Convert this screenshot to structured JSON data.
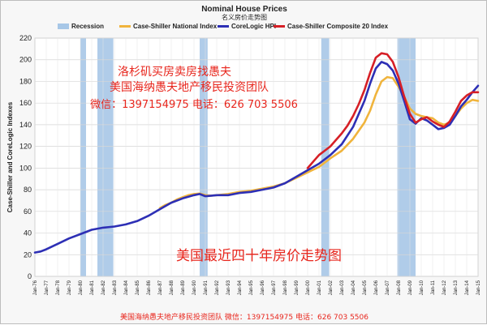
{
  "chart_data": {
    "type": "line",
    "title": "Nominal House Prices",
    "subtitle": "名义房价走势图",
    "ylabel": "Case-Shiller and CoreLogic Indexes",
    "xlabel": "",
    "ylim": [
      0,
      220
    ],
    "yticks": [
      0,
      20,
      40,
      60,
      80,
      100,
      120,
      140,
      160,
      180,
      200,
      220
    ],
    "xlim": [
      1976.0,
      2015.0
    ],
    "xtick_labels": [
      "Jan-76",
      "Jan-77",
      "Jan-78",
      "Jan-79",
      "Jan-80",
      "Jan-81",
      "Jan-82",
      "Jan-83",
      "Jan-84",
      "Jan-85",
      "Jan-86",
      "Jan-87",
      "Jan-88",
      "Jan-89",
      "Jan-90",
      "Jan-91",
      "Jan-92",
      "Jan-93",
      "Jan-94",
      "Jan-95",
      "Jan-96",
      "Jan-97",
      "Jan-98",
      "Jan-99",
      "Jan-00",
      "Jan-01",
      "Jan-02",
      "Jan-03",
      "Jan-04",
      "Jan-05",
      "Jan-06",
      "Jan-07",
      "Jan-08",
      "Jan-09",
      "Jan-10",
      "Jan-11",
      "Jan-12",
      "Jan-13",
      "Jan-14",
      "Jan-15"
    ],
    "grid": true,
    "legend_position": "top",
    "legend": [
      {
        "name": "Recession",
        "color": "#a7c7e7",
        "kind": "box"
      },
      {
        "name": "Case-Shiller National Index",
        "color": "#f0b43c",
        "kind": "line"
      },
      {
        "name": "CoreLogic HPI",
        "color": "#2d2fb5",
        "kind": "line"
      },
      {
        "name": "Case-Shiller Composite 20 Index",
        "color": "#d61f26",
        "kind": "line"
      }
    ],
    "recessions": [
      [
        1980.0,
        1980.5
      ],
      [
        1981.5,
        1982.9
      ],
      [
        1990.5,
        1991.2
      ],
      [
        2001.2,
        2001.9
      ],
      [
        2007.9,
        2009.5
      ]
    ],
    "series": [
      {
        "name": "Case-Shiller National Index",
        "color": "#f0b43c",
        "x": [
          1987.0,
          1987.5,
          1988.0,
          1988.5,
          1989.0,
          1989.5,
          1990.0,
          1990.5,
          1991.0,
          1991.5,
          1992.0,
          1993.0,
          1994.0,
          1995.0,
          1996.0,
          1997.0,
          1998.0,
          1999.0,
          2000.0,
          2001.0,
          2002.0,
          2003.0,
          2004.0,
          2005.0,
          2005.5,
          2006.0,
          2006.5,
          2007.0,
          2007.5,
          2008.0,
          2008.5,
          2009.0,
          2009.5,
          2010.0,
          2010.5,
          2011.0,
          2011.5,
          2012.0,
          2012.5,
          2013.0,
          2013.5,
          2014.0,
          2014.5,
          2015.0
        ],
        "y": [
          63,
          66,
          68,
          71,
          73,
          75,
          76,
          76.5,
          75,
          74.5,
          75,
          76,
          78,
          79,
          81,
          83,
          86,
          91,
          96,
          101,
          109,
          116,
          127,
          142,
          153,
          168,
          180,
          184,
          183,
          175,
          166,
          155,
          150,
          148,
          147,
          146,
          142,
          140,
          142,
          148,
          155,
          160,
          163,
          162
        ]
      },
      {
        "name": "CoreLogic HPI",
        "color": "#2d2fb5",
        "x": [
          1976.0,
          1976.5,
          1977.0,
          1978.0,
          1979.0,
          1980.0,
          1981.0,
          1982.0,
          1983.0,
          1984.0,
          1985.0,
          1986.0,
          1987.0,
          1988.0,
          1989.0,
          1990.0,
          1990.5,
          1991.0,
          1992.0,
          1993.0,
          1994.0,
          1995.0,
          1996.0,
          1997.0,
          1998.0,
          1999.0,
          2000.0,
          2001.0,
          2002.0,
          2003.0,
          2004.0,
          2005.0,
          2005.5,
          2006.0,
          2006.5,
          2007.0,
          2007.5,
          2008.0,
          2008.5,
          2009.0,
          2009.5,
          2010.0,
          2010.5,
          2011.0,
          2011.5,
          2012.0,
          2012.5,
          2013.0,
          2013.5,
          2014.0,
          2014.5,
          2015.0
        ],
        "y": [
          22,
          23,
          25,
          30,
          35,
          39,
          43,
          45,
          46,
          48,
          51,
          56,
          62,
          68,
          72,
          75,
          76,
          74,
          75,
          75,
          77,
          78,
          80,
          82,
          86,
          92,
          98,
          104,
          112,
          122,
          138,
          162,
          178,
          192,
          198,
          196,
          190,
          178,
          162,
          145,
          141,
          146,
          144,
          140,
          136,
          137,
          140,
          148,
          157,
          163,
          170,
          176
        ]
      },
      {
        "name": "Case-Shiller Composite 20 Index",
        "color": "#d61f26",
        "x": [
          2000.0,
          2000.5,
          2001.0,
          2001.5,
          2002.0,
          2002.5,
          2003.0,
          2003.5,
          2004.0,
          2004.5,
          2005.0,
          2005.5,
          2006.0,
          2006.5,
          2007.0,
          2007.5,
          2008.0,
          2008.5,
          2009.0,
          2009.5,
          2010.0,
          2010.5,
          2011.0,
          2011.5,
          2012.0,
          2012.5,
          2013.0,
          2013.5,
          2014.0,
          2014.5,
          2015.0
        ],
        "y": [
          100,
          106,
          112,
          116,
          120,
          126,
          132,
          139,
          148,
          159,
          172,
          188,
          202,
          206,
          205,
          198,
          184,
          166,
          150,
          142,
          145,
          147,
          143,
          140,
          138,
          143,
          152,
          162,
          167,
          170,
          170
        ]
      }
    ]
  },
  "overlay": {
    "line1": "洛杉矶买房卖房找愚夫",
    "line2": "美国海纳愚夫地产移民投资团队",
    "line3": "微信：1397154975 电话：626 703 5506",
    "center_caption": "美国最近四十年房价走势图",
    "footer": "美国海纳愚夫地产移民投资团队 微信：1397154975 电话：626 703 5506"
  }
}
